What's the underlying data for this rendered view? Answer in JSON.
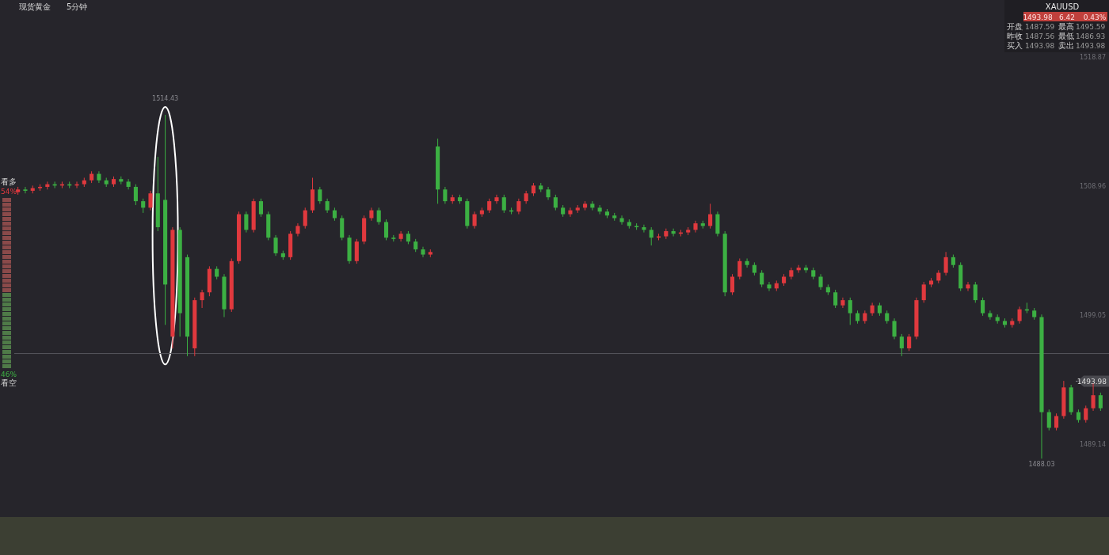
{
  "chart_data": {
    "type": "candlestick",
    "title": "现货黄金",
    "subtitle": "5分钟",
    "categories": [
      null,
      null,
      null,
      null,
      null,
      null,
      null,
      null,
      null,
      null,
      null,
      null,
      null,
      null,
      null,
      null,
      null,
      null,
      null,
      null,
      null,
      null,
      null,
      null,
      null,
      null,
      null,
      null,
      null,
      null,
      null,
      null,
      null,
      null,
      null,
      null,
      null,
      null,
      null,
      null,
      null,
      null,
      null,
      null,
      null,
      null,
      null,
      null,
      null,
      null,
      null,
      null,
      null,
      null,
      null,
      null,
      null,
      null,
      null,
      null,
      null,
      null,
      null,
      null,
      null,
      null,
      null,
      null,
      null,
      null,
      null,
      null,
      null,
      null,
      null,
      null,
      null,
      null,
      null,
      null,
      null,
      null,
      null,
      null,
      null,
      null,
      null,
      null,
      null,
      null,
      null,
      null,
      null,
      null,
      null,
      null,
      null,
      null,
      null,
      null,
      null,
      null,
      null,
      null,
      null,
      null,
      null,
      null,
      null,
      null,
      null,
      null,
      null,
      null,
      null,
      null,
      null,
      null,
      null,
      null,
      null,
      null,
      null,
      null,
      null,
      null,
      null,
      null,
      null,
      null,
      null,
      null,
      null,
      null,
      null,
      null,
      null,
      null,
      null,
      null,
      null,
      null,
      null,
      null,
      null,
      null,
      null,
      null
    ],
    "ohlc": [
      [
        1508.5,
        1508.9,
        1508.3,
        1508.7
      ],
      [
        1508.7,
        1508.9,
        1508.4,
        1508.6
      ],
      [
        1508.6,
        1509.0,
        1508.4,
        1508.8
      ],
      [
        1508.8,
        1509.1,
        1508.6,
        1508.9
      ],
      [
        1508.9,
        1509.3,
        1508.7,
        1509.1
      ],
      [
        1509.1,
        1509.3,
        1508.8,
        1509.0
      ],
      [
        1509.0,
        1509.3,
        1508.8,
        1509.1
      ],
      [
        1509.1,
        1509.3,
        1508.8,
        1509.0
      ],
      [
        1509.0,
        1509.3,
        1508.8,
        1509.1
      ],
      [
        1509.1,
        1509.6,
        1508.9,
        1509.4
      ],
      [
        1509.4,
        1510.1,
        1509.2,
        1509.9
      ],
      [
        1509.9,
        1510.1,
        1509.2,
        1509.4
      ],
      [
        1509.4,
        1509.6,
        1508.9,
        1509.1
      ],
      [
        1509.1,
        1509.7,
        1508.9,
        1509.5
      ],
      [
        1509.5,
        1509.7,
        1509.1,
        1509.3
      ],
      [
        1509.3,
        1509.5,
        1508.7,
        1508.9
      ],
      [
        1508.9,
        1509.1,
        1507.5,
        1507.8
      ],
      [
        1507.8,
        1508.0,
        1506.9,
        1507.3
      ],
      [
        1507.3,
        1508.6,
        1507.1,
        1508.4
      ],
      [
        1508.4,
        1511.2,
        1505.5,
        1505.8
      ],
      [
        1507.9,
        1514.43,
        1498.3,
        1501.4
      ],
      [
        1497.4,
        1505.8,
        1496.5,
        1505.6
      ],
      [
        1505.6,
        1505.8,
        1497.4,
        1499.2
      ],
      [
        1503.5,
        1503.7,
        1495.9,
        1497.4
      ],
      [
        1496.5,
        1500.4,
        1495.9,
        1500.2
      ],
      [
        1500.2,
        1501.0,
        1499.6,
        1500.8
      ],
      [
        1500.8,
        1502.8,
        1500.5,
        1502.6
      ],
      [
        1502.6,
        1502.8,
        1501.8,
        1502.0
      ],
      [
        1502.0,
        1502.2,
        1498.9,
        1499.5
      ],
      [
        1499.5,
        1503.4,
        1499.3,
        1503.2
      ],
      [
        1503.2,
        1507.0,
        1503.0,
        1506.8
      ],
      [
        1506.8,
        1507.0,
        1505.4,
        1505.6
      ],
      [
        1505.6,
        1508.0,
        1505.4,
        1507.8
      ],
      [
        1507.8,
        1508.0,
        1506.6,
        1506.8
      ],
      [
        1506.8,
        1507.0,
        1504.8,
        1505.0
      ],
      [
        1505.0,
        1505.2,
        1503.6,
        1503.8
      ],
      [
        1503.8,
        1504.0,
        1503.3,
        1503.5
      ],
      [
        1503.5,
        1505.5,
        1503.3,
        1505.3
      ],
      [
        1505.3,
        1506.1,
        1505.1,
        1505.9
      ],
      [
        1505.9,
        1507.3,
        1505.7,
        1507.1
      ],
      [
        1507.1,
        1509.6,
        1506.9,
        1508.7
      ],
      [
        1508.7,
        1508.9,
        1507.6,
        1507.8
      ],
      [
        1507.8,
        1508.0,
        1506.9,
        1507.1
      ],
      [
        1507.1,
        1507.3,
        1506.3,
        1506.5
      ],
      [
        1506.5,
        1506.7,
        1504.8,
        1505.0
      ],
      [
        1505.0,
        1505.2,
        1503.0,
        1503.2
      ],
      [
        1503.2,
        1504.9,
        1503.0,
        1504.7
      ],
      [
        1504.7,
        1506.7,
        1504.5,
        1506.5
      ],
      [
        1506.5,
        1507.3,
        1506.3,
        1507.1
      ],
      [
        1507.1,
        1507.3,
        1506.0,
        1506.2
      ],
      [
        1506.2,
        1506.4,
        1504.8,
        1505.0
      ],
      [
        1505.0,
        1505.2,
        1504.7,
        1504.9
      ],
      [
        1504.9,
        1505.5,
        1504.7,
        1505.3
      ],
      [
        1505.3,
        1505.5,
        1504.5,
        1504.7
      ],
      [
        1504.7,
        1504.9,
        1503.9,
        1504.1
      ],
      [
        1504.1,
        1504.3,
        1503.5,
        1503.7
      ],
      [
        1503.7,
        1504.1,
        1503.5,
        1503.9
      ],
      [
        1512.0,
        1512.6,
        1507.6,
        1508.7
      ],
      [
        1508.7,
        1508.9,
        1507.6,
        1507.8
      ],
      [
        1507.8,
        1508.3,
        1507.6,
        1508.1
      ],
      [
        1508.1,
        1508.3,
        1507.6,
        1507.8
      ],
      [
        1507.8,
        1508.0,
        1505.7,
        1505.9
      ],
      [
        1505.9,
        1507.0,
        1505.7,
        1506.8
      ],
      [
        1506.8,
        1507.3,
        1506.6,
        1507.1
      ],
      [
        1507.1,
        1508.0,
        1506.9,
        1507.8
      ],
      [
        1507.8,
        1508.3,
        1507.6,
        1508.1
      ],
      [
        1508.1,
        1508.3,
        1506.9,
        1507.1
      ],
      [
        1507.1,
        1507.3,
        1506.8,
        1507.0
      ],
      [
        1507.0,
        1508.0,
        1506.8,
        1507.8
      ],
      [
        1507.8,
        1508.6,
        1507.6,
        1508.4
      ],
      [
        1508.4,
        1509.2,
        1508.2,
        1509.0
      ],
      [
        1509.0,
        1509.2,
        1508.5,
        1508.7
      ],
      [
        1508.7,
        1508.9,
        1507.9,
        1508.1
      ],
      [
        1508.1,
        1508.3,
        1507.1,
        1507.3
      ],
      [
        1507.3,
        1507.5,
        1506.6,
        1506.8
      ],
      [
        1506.8,
        1507.3,
        1506.6,
        1507.1
      ],
      [
        1507.1,
        1507.5,
        1506.9,
        1507.3
      ],
      [
        1507.3,
        1507.8,
        1507.1,
        1507.6
      ],
      [
        1507.6,
        1507.8,
        1507.1,
        1507.3
      ],
      [
        1507.3,
        1507.5,
        1506.8,
        1507.0
      ],
      [
        1507.0,
        1507.2,
        1506.5,
        1506.7
      ],
      [
        1506.7,
        1506.9,
        1506.3,
        1506.5
      ],
      [
        1506.5,
        1506.7,
        1506.0,
        1506.2
      ],
      [
        1506.2,
        1506.4,
        1505.7,
        1505.9
      ],
      [
        1505.9,
        1506.1,
        1505.6,
        1505.8
      ],
      [
        1505.8,
        1506.0,
        1505.4,
        1505.6
      ],
      [
        1505.6,
        1505.8,
        1504.4,
        1505.0
      ],
      [
        1505.0,
        1505.3,
        1504.8,
        1505.1
      ],
      [
        1505.1,
        1505.7,
        1504.9,
        1505.5
      ],
      [
        1505.5,
        1505.7,
        1505.1,
        1505.3
      ],
      [
        1505.3,
        1505.6,
        1505.1,
        1505.4
      ],
      [
        1505.4,
        1505.8,
        1505.2,
        1505.6
      ],
      [
        1505.6,
        1506.3,
        1505.4,
        1506.1
      ],
      [
        1506.1,
        1506.3,
        1505.7,
        1505.9
      ],
      [
        1505.9,
        1507.6,
        1505.7,
        1506.8
      ],
      [
        1506.8,
        1507.0,
        1505.1,
        1505.3
      ],
      [
        1505.3,
        1505.5,
        1500.5,
        1500.8
      ],
      [
        1500.8,
        1502.2,
        1500.6,
        1502.0
      ],
      [
        1502.0,
        1503.4,
        1501.8,
        1503.2
      ],
      [
        1503.2,
        1503.4,
        1502.7,
        1502.9
      ],
      [
        1502.9,
        1503.1,
        1502.1,
        1502.3
      ],
      [
        1502.3,
        1502.5,
        1501.2,
        1501.4
      ],
      [
        1501.4,
        1501.6,
        1500.9,
        1501.1
      ],
      [
        1501.1,
        1501.7,
        1500.9,
        1501.5
      ],
      [
        1501.5,
        1502.2,
        1501.3,
        1502.0
      ],
      [
        1502.0,
        1502.7,
        1501.8,
        1502.5
      ],
      [
        1502.5,
        1502.9,
        1502.3,
        1502.7
      ],
      [
        1502.7,
        1502.9,
        1502.3,
        1502.5
      ],
      [
        1502.5,
        1502.7,
        1501.8,
        1502.0
      ],
      [
        1502.0,
        1502.2,
        1501.0,
        1501.2
      ],
      [
        1501.2,
        1501.4,
        1500.6,
        1500.8
      ],
      [
        1500.8,
        1501.0,
        1499.6,
        1499.8
      ],
      [
        1499.8,
        1500.4,
        1499.6,
        1500.2
      ],
      [
        1500.2,
        1500.4,
        1498.3,
        1499.2
      ],
      [
        1499.2,
        1499.4,
        1498.4,
        1498.6
      ],
      [
        1498.6,
        1499.4,
        1498.4,
        1499.2
      ],
      [
        1499.2,
        1500.0,
        1499.0,
        1499.8
      ],
      [
        1499.8,
        1500.0,
        1499.0,
        1499.2
      ],
      [
        1499.2,
        1499.4,
        1498.4,
        1498.6
      ],
      [
        1498.6,
        1498.8,
        1497.2,
        1497.4
      ],
      [
        1497.4,
        1497.6,
        1495.9,
        1496.5
      ],
      [
        1496.5,
        1497.6,
        1496.3,
        1497.4
      ],
      [
        1497.4,
        1500.4,
        1497.2,
        1500.2
      ],
      [
        1500.2,
        1501.6,
        1500.0,
        1501.4
      ],
      [
        1501.4,
        1501.9,
        1501.2,
        1501.7
      ],
      [
        1501.7,
        1502.5,
        1501.5,
        1502.3
      ],
      [
        1502.3,
        1503.9,
        1502.1,
        1503.5
      ],
      [
        1503.5,
        1503.7,
        1502.7,
        1502.9
      ],
      [
        1502.9,
        1503.1,
        1500.9,
        1501.1
      ],
      [
        1501.1,
        1501.6,
        1500.9,
        1501.4
      ],
      [
        1501.4,
        1501.6,
        1500.0,
        1500.2
      ],
      [
        1500.2,
        1500.4,
        1499.0,
        1499.2
      ],
      [
        1499.2,
        1499.4,
        1498.7,
        1498.9
      ],
      [
        1498.9,
        1499.1,
        1498.4,
        1498.6
      ],
      [
        1498.6,
        1498.8,
        1498.1,
        1498.3
      ],
      [
        1498.3,
        1498.8,
        1498.1,
        1498.6
      ],
      [
        1498.6,
        1499.7,
        1498.4,
        1499.5
      ],
      [
        1499.5,
        1500.0,
        1499.2,
        1499.4
      ],
      [
        1499.4,
        1499.6,
        1498.7,
        1498.9
      ],
      [
        1498.9,
        1499.1,
        1488.03,
        1491.6
      ],
      [
        1491.6,
        1491.8,
        1490.2,
        1490.4
      ],
      [
        1490.4,
        1491.5,
        1490.2,
        1491.3
      ],
      [
        1491.3,
        1494.0,
        1491.1,
        1493.5
      ],
      [
        1493.5,
        1493.7,
        1491.4,
        1491.6
      ],
      [
        1491.6,
        1491.8,
        1490.8,
        1491.0
      ],
      [
        1491.0,
        1492.1,
        1490.8,
        1491.9
      ],
      [
        1491.9,
        1493.8,
        1491.7,
        1492.9
      ],
      [
        1492.9,
        1493.1,
        1491.7,
        1491.9
      ]
    ],
    "ylim": [
      1480.63,
      1523.25
    ],
    "yticks": [
      1518.87,
      1508.96,
      1499.05,
      1489.14
    ],
    "tick_labels": "y",
    "ref_lines": [
      {
        "axis": "y",
        "value": 1496.1,
        "color": "#55555c"
      },
      {
        "axis": "y",
        "value": 1493.98,
        "label": "1493.98",
        "color": "#8a8a92"
      }
    ],
    "annotations": [
      "XAUUSD",
      "1493.98",
      "6.42",
      "0.43%",
      "开盘",
      "1487.59",
      "最高",
      "1495.59",
      "昨收",
      "1487.56",
      "最低",
      "1486.93",
      "买入",
      "1493.98",
      "卖出",
      "1493.98",
      "看多",
      "54%",
      "看空",
      "46%",
      {
        "text": "1514.43",
        "y": 1514.43
      },
      {
        "text": "1488.03",
        "y": 1488.03
      }
    ]
  }
}
